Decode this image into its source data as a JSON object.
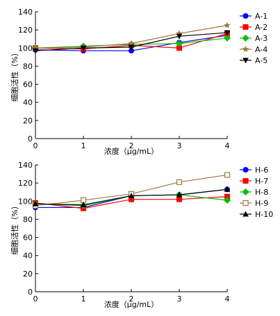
{
  "chart_data": [
    {
      "type": "line",
      "xlabel": "浓度（μg/mL）",
      "ylabel": "细胞活性（%）",
      "x": [
        0,
        1,
        2,
        3,
        4
      ],
      "xlim": [
        0,
        4
      ],
      "ylim": [
        0,
        140
      ],
      "xticks": [
        "0",
        "1",
        "2",
        "3",
        "4"
      ],
      "yticks": [
        "0",
        "20",
        "40",
        "60",
        "80",
        "100",
        "120",
        "140"
      ],
      "grid": false,
      "legend": "right",
      "series": [
        {
          "name": "A-1",
          "color": "#0000ff",
          "marker": "circle",
          "values": [
            98,
            97,
            97,
            106,
            114
          ]
        },
        {
          "name": "A-2",
          "color": "#ff0000",
          "marker": "square",
          "values": [
            100,
            99,
            103,
            100,
            116
          ]
        },
        {
          "name": "A-3",
          "color": "#00c000",
          "marker": "diamond",
          "values": [
            100,
            102,
            104,
            105,
            111
          ]
        },
        {
          "name": "A-4",
          "color": "#a0783c",
          "marker": "star",
          "values": [
            100,
            101,
            105,
            116,
            125
          ]
        },
        {
          "name": "A-5",
          "color": "#000000",
          "marker": "triangle-down",
          "values": [
            97,
            100,
            101,
            113,
            117
          ]
        }
      ]
    },
    {
      "type": "line",
      "xlabel": "浓度（μg/mL）",
      "ylabel": "细胞活性（%）",
      "x": [
        0,
        1,
        2,
        3,
        4
      ],
      "xlim": [
        0,
        4
      ],
      "ylim": [
        0,
        140
      ],
      "xticks": [
        "0",
        "1",
        "2",
        "3",
        "4"
      ],
      "yticks": [
        "0",
        "20",
        "40",
        "60",
        "80",
        "100",
        "120",
        "140"
      ],
      "grid": false,
      "legend": "right",
      "series": [
        {
          "name": "H-6",
          "color": "#0000ff",
          "marker": "circle",
          "values": [
            93,
            93,
            106,
            107,
            113
          ]
        },
        {
          "name": "H-7",
          "color": "#ff0000",
          "marker": "square",
          "values": [
            98,
            92,
            102,
            102,
            105
          ]
        },
        {
          "name": "H-8",
          "color": "#00c000",
          "marker": "diamond",
          "values": [
            97,
            95,
            106,
            107,
            101
          ]
        },
        {
          "name": "H-9",
          "color": "#a0783c",
          "marker": "open-square",
          "values": [
            95,
            101,
            108,
            121,
            129
          ]
        },
        {
          "name": "H-10",
          "color": "#000000",
          "marker": "triangle-up",
          "values": [
            97,
            96,
            106,
            107,
            113
          ]
        }
      ]
    }
  ]
}
